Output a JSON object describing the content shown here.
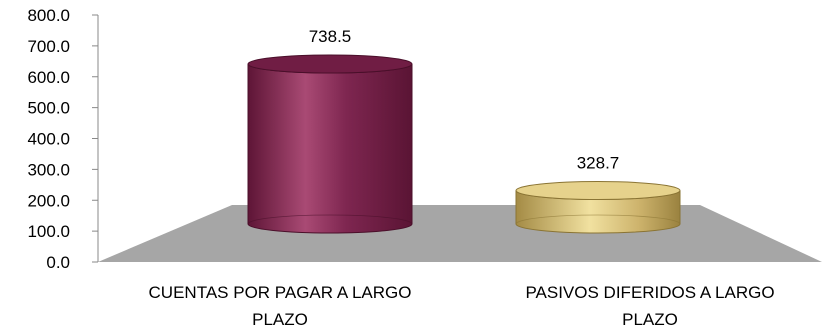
{
  "chart_data": {
    "type": "bar",
    "style": "3d-cylinder",
    "categories": [
      "CUENTAS POR PAGAR A LARGO PLAZO",
      "PASIVOS DIFERIDOS A LARGO PLAZO"
    ],
    "category_lines": [
      [
        "CUENTAS POR PAGAR A LARGO",
        "PLAZO"
      ],
      [
        "PASIVOS DIFERIDOS A LARGO",
        "PLAZO"
      ]
    ],
    "values": [
      738.5,
      328.7
    ],
    "data_labels": [
      "738.5",
      "328.7"
    ],
    "colors": [
      "#8a2a55",
      "#d8c27a"
    ],
    "floor_color": "#a6a6a6",
    "ylim": [
      0,
      800
    ],
    "yticks": [
      0,
      100,
      200,
      300,
      400,
      500,
      600,
      700,
      800
    ],
    "ytick_labels": [
      "0.0",
      "100.0",
      "200.0",
      "300.0",
      "400.0",
      "500.0",
      "600.0",
      "700.0",
      "800.0"
    ],
    "grid": false,
    "legend": "none"
  }
}
